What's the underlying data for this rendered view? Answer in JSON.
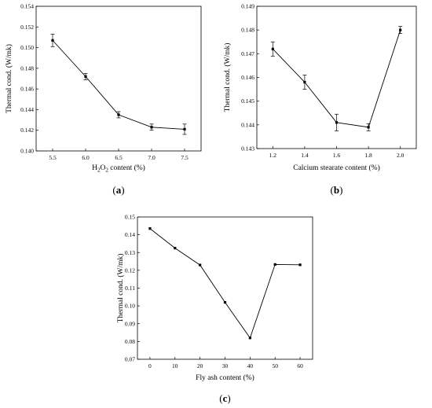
{
  "chart_data": [
    {
      "type": "line",
      "panel_label": "(a)",
      "xlabel_parts": [
        "H",
        "2",
        "O",
        "2",
        " content (%)"
      ],
      "ylabel": "Thermal cond. (W/mk)",
      "x": [
        5.5,
        6.0,
        6.5,
        7.0,
        7.5
      ],
      "values": [
        0.1507,
        0.1472,
        0.1435,
        0.1423,
        0.1421
      ],
      "errors": [
        0.0006,
        0.0003,
        0.0003,
        0.0003,
        0.0005
      ],
      "xlim": [
        5.25,
        7.75
      ],
      "ylim": [
        0.14,
        0.154
      ],
      "xticks": [
        5.5,
        6.0,
        6.5,
        7.0,
        7.5
      ],
      "xtick_labels": [
        "5.5",
        "6.0",
        "6.5",
        "7.0",
        "7.5"
      ],
      "yticks": [
        0.14,
        0.142,
        0.144,
        0.146,
        0.148,
        0.15,
        0.152,
        0.154
      ],
      "ytick_labels": [
        "0.140",
        "0.142",
        "0.144",
        "0.146",
        "0.148",
        "0.150",
        "0.152",
        "0.154"
      ],
      "grid": false
    },
    {
      "type": "line",
      "panel_label": "(b)",
      "xlabel": "Calcium stearate content (%)",
      "ylabel": "Thermal cond. (W/mk)",
      "x": [
        1.2,
        1.4,
        1.6,
        1.8,
        2.0
      ],
      "values": [
        0.1472,
        0.1458,
        0.1441,
        0.1439,
        0.148
      ],
      "errors": [
        0.0003,
        0.0003,
        0.00035,
        0.00015,
        0.00015
      ],
      "xlim": [
        1.1,
        2.1
      ],
      "ylim": [
        0.143,
        0.149
      ],
      "xticks": [
        1.2,
        1.4,
        1.6,
        1.8,
        2.0
      ],
      "xtick_labels": [
        "1.2",
        "1.4",
        "1.6",
        "1.8",
        "2.0"
      ],
      "yticks": [
        0.143,
        0.144,
        0.145,
        0.146,
        0.147,
        0.148,
        0.149
      ],
      "ytick_labels": [
        "0.143",
        "0.144",
        "0.145",
        "0.146",
        "0.147",
        "0.148",
        "0.149"
      ],
      "grid": false
    },
    {
      "type": "line",
      "panel_label": "(c)",
      "xlabel": "Fly ash content (%)",
      "ylabel": "Thermal cond. (W/mk)",
      "x": [
        0,
        10,
        20,
        30,
        40,
        50,
        60
      ],
      "values": [
        0.1435,
        0.1325,
        0.123,
        0.102,
        0.082,
        0.1233,
        0.1231
      ],
      "errors": [
        0,
        0,
        0,
        0,
        0,
        0,
        0
      ],
      "xlim": [
        -5,
        65
      ],
      "ylim": [
        0.07,
        0.15
      ],
      "xticks": [
        0,
        10,
        20,
        30,
        40,
        50,
        60
      ],
      "xtick_labels": [
        "0",
        "10",
        "20",
        "30",
        "40",
        "50",
        "60"
      ],
      "yticks": [
        0.07,
        0.08,
        0.09,
        0.1,
        0.11,
        0.12,
        0.13,
        0.14,
        0.15
      ],
      "ytick_labels": [
        "0.07",
        "0.08",
        "0.09",
        "0.10",
        "0.11",
        "0.12",
        "0.13",
        "0.14",
        "0.15"
      ],
      "grid": false
    }
  ]
}
